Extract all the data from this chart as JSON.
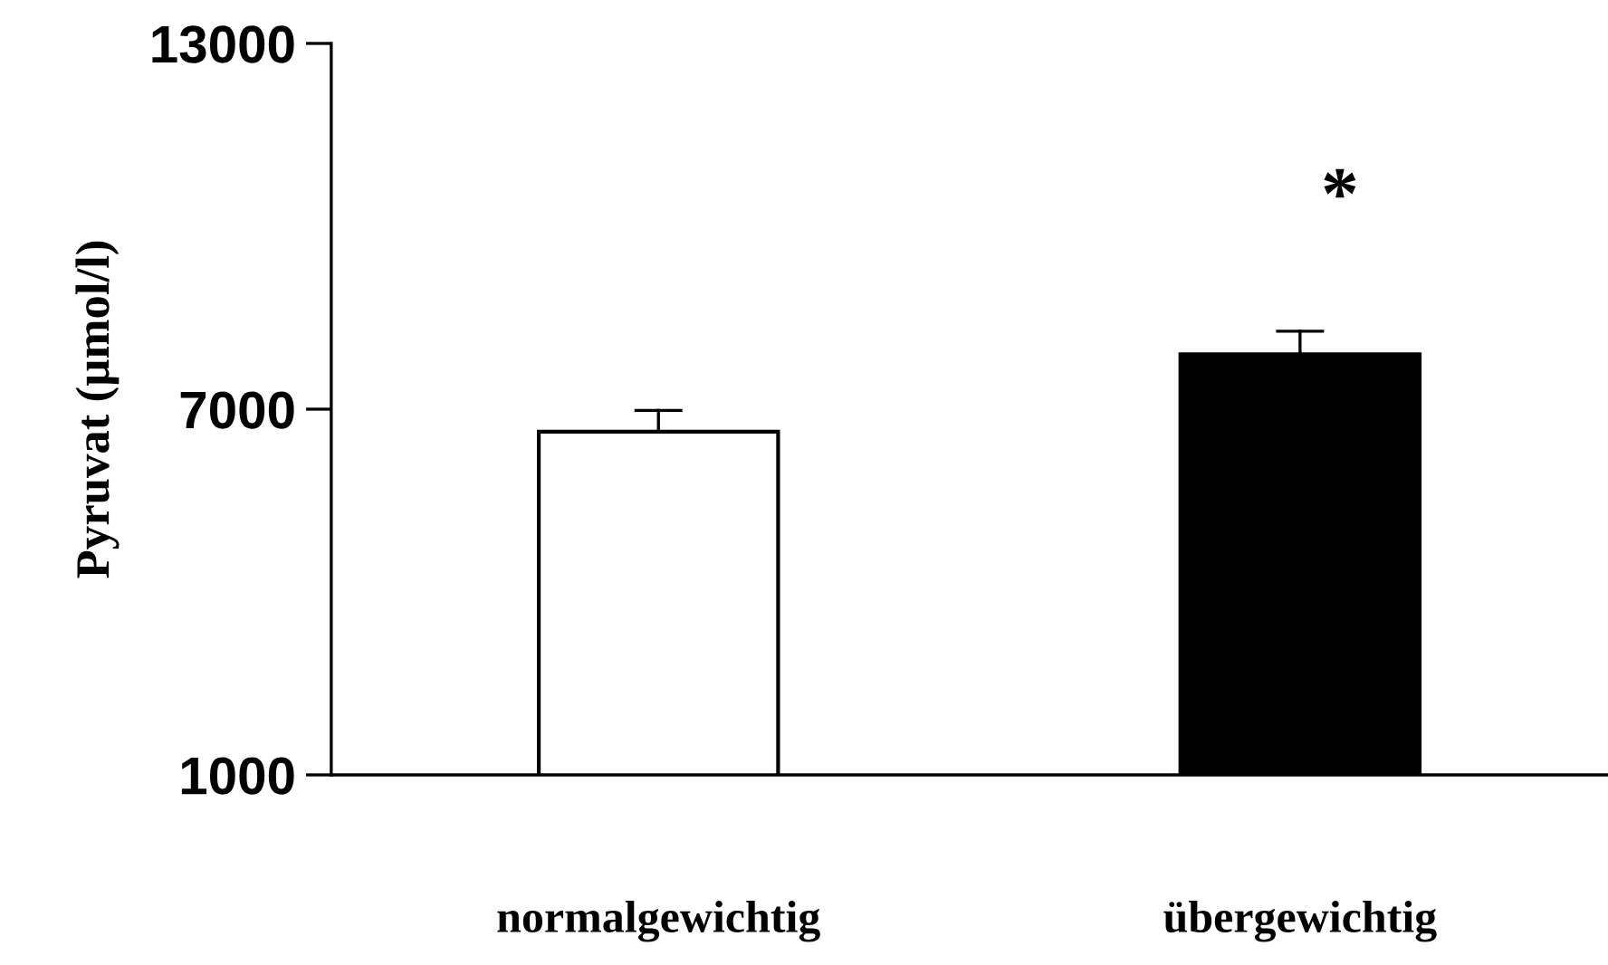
{
  "chart_data": {
    "type": "bar",
    "ylabel": "Pyruvat (µmol/l)",
    "categories": [
      "normalgewichtig",
      "übergewichtig"
    ],
    "values": [
      6630,
      7900
    ],
    "errors": [
      [
        6630,
        6980
      ],
      [
        7900,
        8280
      ]
    ],
    "colors": [
      "#ffffff",
      "#000000"
    ],
    "ylim": [
      1000,
      13000
    ],
    "yticks": [
      1000,
      7000,
      13000
    ],
    "grid": false,
    "legend": false,
    "annotations": [
      "*"
    ]
  }
}
